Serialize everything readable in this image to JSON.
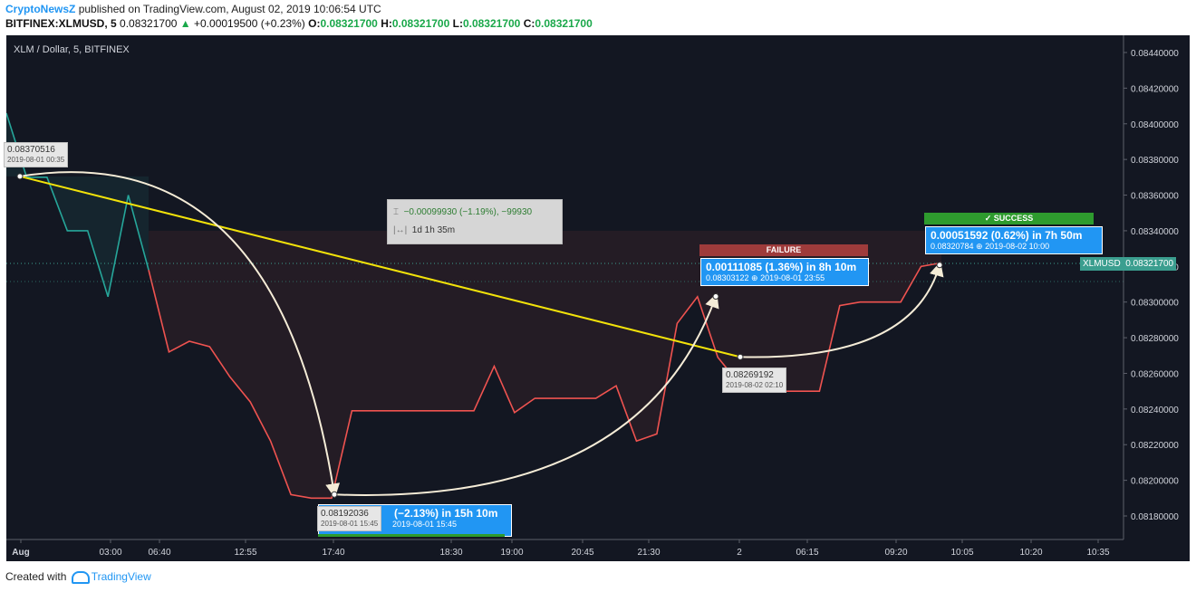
{
  "header": {
    "brand": "CryptoNewsZ",
    "published": "published on TradingView.com, August 02, 2019 10:06:54 UTC",
    "symbol": "BITFINEX:XLMUSD, 5",
    "last": "0.08321700",
    "arrow": "▲",
    "change": "+0.00019500 (+0.23%)",
    "o_label": "O:",
    "o": "0.08321700",
    "h_label": "H:",
    "h": "0.08321700",
    "l_label": "L:",
    "l": "0.08321700",
    "c_label": "C:",
    "c": "0.08321700"
  },
  "chart_title": "XLM / Dollar, 5, BITFINEX",
  "footer": {
    "created_with": "Created with",
    "tradingview": "TradingView"
  },
  "labels": {
    "start": {
      "price": "0.08370516",
      "time": "2019-08-01 00:35"
    },
    "low": {
      "price": "0.08192036",
      "time": "2019-08-01 15:45"
    },
    "mid": {
      "price": "0.08269192",
      "time": "2019-08-02 02:10"
    }
  },
  "measure_low": {
    "main": "(−2.13%) in 15h 10m",
    "sub": "2019-08-01  15:45"
  },
  "measure_fail": {
    "tag": "FAILURE",
    "main": "0.00111085 (1.36%) in 8h 10m",
    "sub": "0.08303122  ⊕  2019-08-01  23:55"
  },
  "measure_success": {
    "tag": "✓ SUCCESS",
    "main": "0.00051592 (0.62%) in 7h 50m",
    "sub": "0.08320784  ⊕  2019-08-02  10:00"
  },
  "info_box": {
    "line1": "−0.00099930 (−1.19%), −99930",
    "line2": "1d 1h 35m"
  },
  "price_tag": {
    "symbol": "XLMUSD",
    "price": "0.08321700"
  },
  "colors": {
    "up": "#26a69a",
    "down": "#ef5350",
    "trend": "#f2e20a",
    "arrow": "#f5ecd7",
    "bg": "#131722"
  },
  "chart_data": {
    "type": "line",
    "title": "XLM / Dollar, 5, BITFINEX",
    "x_ticks": [
      "Aug",
      "03:00",
      "06:40",
      "12:55",
      "17:40",
      "18:30",
      "19:00",
      "20:45",
      "21:30",
      "2",
      "06:15",
      "09:20",
      "10:05",
      "10:20",
      "10:35"
    ],
    "y_ticks": [
      "0.08440000",
      "0.08420000",
      "0.08400000",
      "0.08380000",
      "0.08360000",
      "0.08340000",
      "0.08320000",
      "0.08300000",
      "0.08280000",
      "0.08260000",
      "0.08240000",
      "0.08220000",
      "0.08200000",
      "0.08180000"
    ],
    "ylim": [
      0.0816,
      0.0845
    ],
    "series": [
      {
        "values": [
          0.08406,
          0.0837,
          0.0837,
          0.0834,
          0.0834,
          0.08303,
          0.0836,
          0.08318,
          0.08272,
          0.08278,
          0.08275,
          0.08258,
          0.08244,
          0.08222,
          0.08192,
          0.0819,
          0.0819,
          0.08239,
          0.08239,
          0.08239,
          0.08239,
          0.08239,
          0.08239,
          0.08239,
          0.08264,
          0.08238,
          0.08246,
          0.08246,
          0.08246,
          0.08246,
          0.08253,
          0.08222,
          0.08226,
          0.08288,
          0.08303,
          0.08269,
          0.08255,
          0.0825,
          0.0825,
          0.0825,
          0.0825,
          0.08298,
          0.083,
          0.083,
          0.083,
          0.0832,
          0.08322
        ]
      }
    ],
    "trend_line": [
      0.08370516,
      0.08269192
    ],
    "current_price": 0.083217
  }
}
